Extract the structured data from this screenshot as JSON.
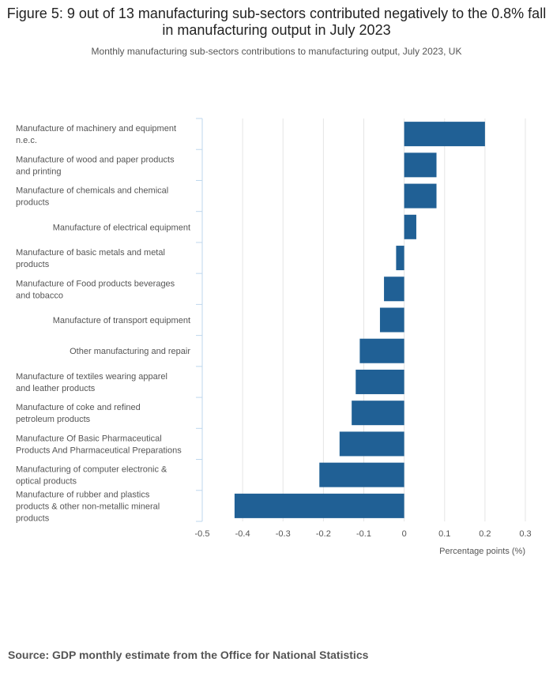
{
  "title": "Figure 5: 9 out of 13 manufacturing sub-sectors contributed negatively to the 0.8% fall in manufacturing output in July 2023",
  "subtitle": "Monthly manufacturing sub-sectors contributions to manufacturing output, July 2023, UK",
  "source": "Source: GDP monthly estimate from the Office for National Statistics",
  "chart_data": {
    "type": "bar",
    "orientation": "horizontal",
    "categories": [
      "Manufacture of machinery and equipment n.e.c.",
      "Manufacture of wood and paper products and printing",
      "Manufacture of chemicals and chemical products",
      "Manufacture of electrical equipment",
      "Manufacture of basic metals and metal products",
      "Manufacture of Food products beverages and tobacco",
      "Manufacture of transport equipment",
      "Other manufacturing and repair",
      "Manufacture of textiles wearing apparel and leather products",
      "Manufacture of coke and refined petroleum products",
      "Manufacture Of Basic Pharmaceutical Products And Pharmaceutical Preparations",
      "Manufacturing of computer electronic & optical products",
      "Manufacture of rubber and plastics products & other non-metallic mineral products"
    ],
    "label_lines": [
      [
        "Manufacture of machinery and equipment",
        "n.e.c."
      ],
      [
        "Manufacture of wood and paper products",
        "and printing"
      ],
      [
        "Manufacture of chemicals and chemical",
        "products"
      ],
      [
        "Manufacture of electrical equipment"
      ],
      [
        "Manufacture of basic metals and metal",
        "products"
      ],
      [
        "Manufacture of Food products beverages",
        "and tobacco"
      ],
      [
        "Manufacture of transport equipment"
      ],
      [
        "Other manufacturing and repair"
      ],
      [
        "Manufacture of textiles wearing apparel",
        "and leather products"
      ],
      [
        "Manufacture of coke and refined",
        "petroleum products"
      ],
      [
        "Manufacture Of Basic Pharmaceutical",
        "Products And Pharmaceutical Preparations"
      ],
      [
        "Manufacturing of computer electronic &",
        "optical products"
      ],
      [
        "Manufacture of rubber and plastics",
        "products & other non-metallic mineral",
        "products"
      ]
    ],
    "values": [
      0.2,
      0.08,
      0.08,
      0.03,
      -0.02,
      -0.05,
      -0.06,
      -0.11,
      -0.12,
      -0.13,
      -0.16,
      -0.21,
      -0.42
    ],
    "xlim": [
      -0.5,
      0.3
    ],
    "xticks": [
      -0.5,
      -0.4,
      -0.3,
      -0.2,
      -0.1,
      0,
      0.1,
      0.2,
      0.3
    ],
    "xtick_labels": [
      "-0.5",
      "-0.4",
      "-0.3",
      "-0.2",
      "-0.1",
      "0",
      "0.1",
      "0.2",
      "0.3"
    ],
    "xlabel": "Percentage points (%)",
    "ylabel": "",
    "grid": true,
    "bar_color": "#206095",
    "grid_color": "#e5e5e5",
    "axis_color": "#bed7ed"
  }
}
